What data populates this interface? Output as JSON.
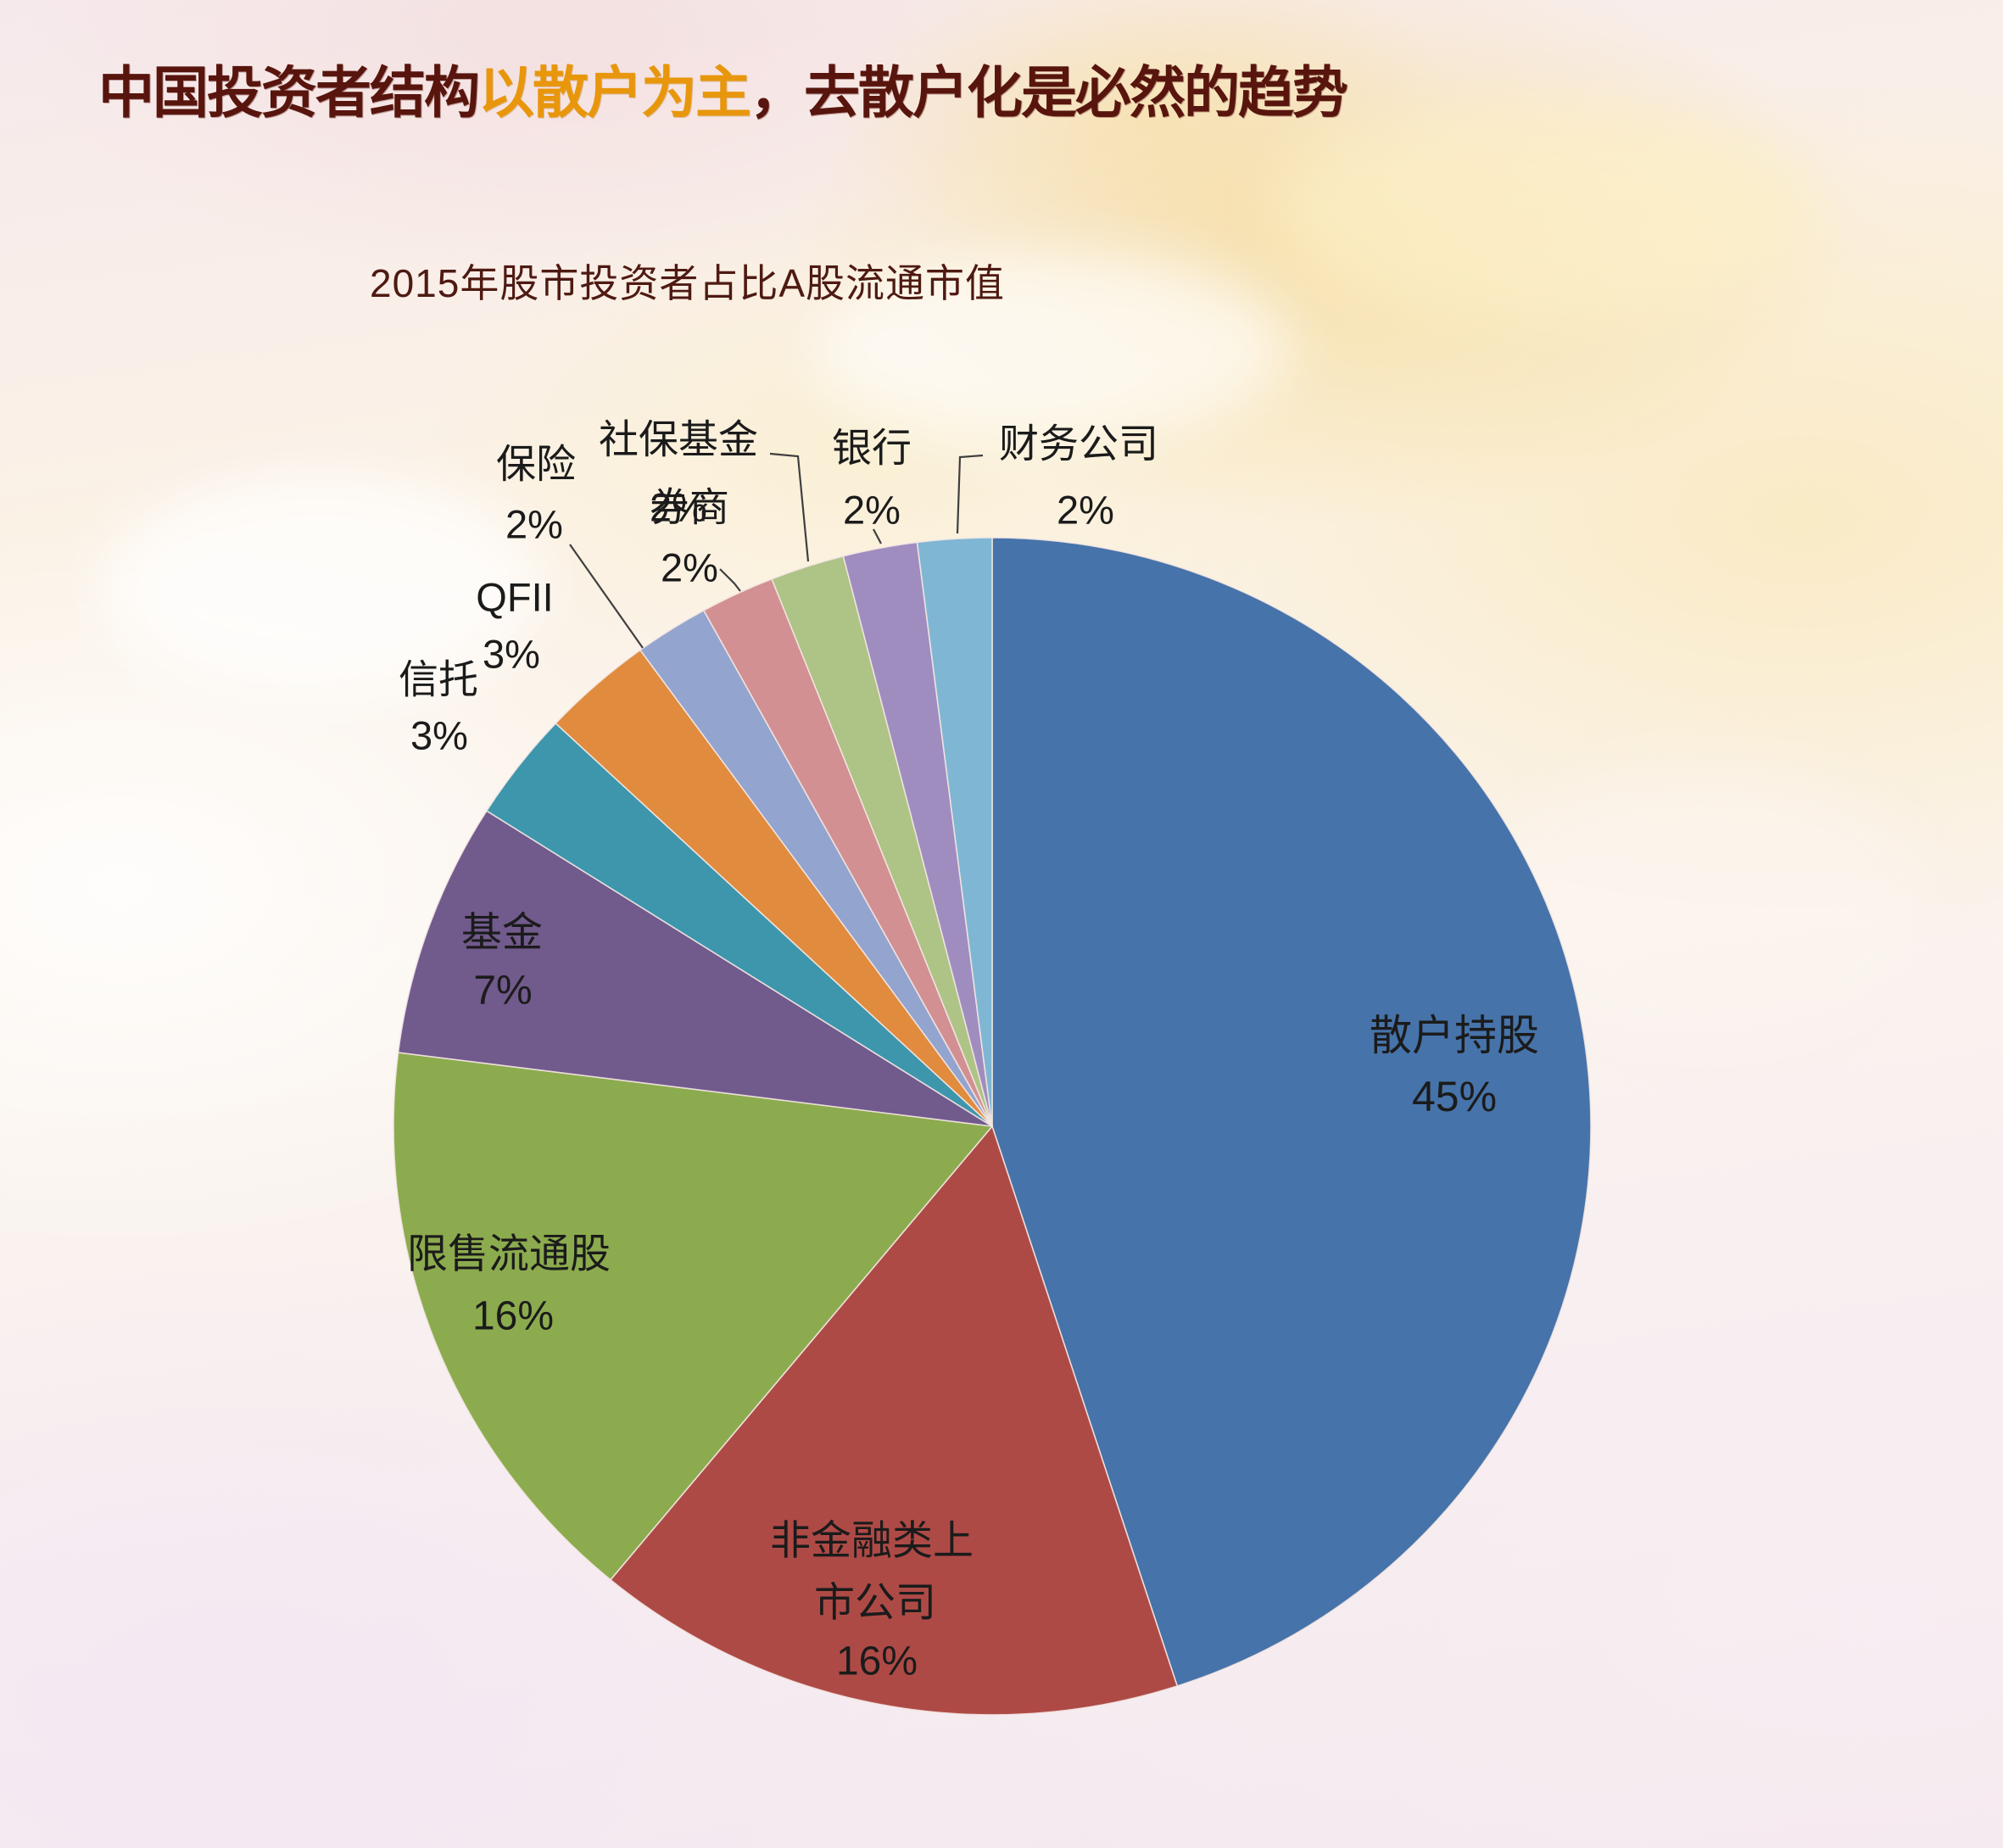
{
  "title": {
    "prefix": "中国投资者结构",
    "highlight": "以散户为主",
    "suffix": "，去散户化是必然的趋势"
  },
  "chart_data": {
    "type": "pie",
    "title": "2015年股市投资者占比A股流通市值",
    "start_angle_deg": 0,
    "direction": "clockwise",
    "legend_position": "none",
    "labels_on_slices": true,
    "slices": [
      {
        "label": "散户持股",
        "value": 45,
        "pct_label": "45%",
        "color": "#4673A9"
      },
      {
        "label": "非金融类上市公司",
        "value": 16,
        "pct_label": "16%",
        "color": "#AE4A46"
      },
      {
        "label": "限售流通股",
        "value": 16,
        "pct_label": "16%",
        "color": "#8CAB4E"
      },
      {
        "label": "基金",
        "value": 7,
        "pct_label": "7%",
        "color": "#715A8C"
      },
      {
        "label": "信托",
        "value": 3,
        "pct_label": "3%",
        "color": "#3D96AC"
      },
      {
        "label": "QFII",
        "value": 3,
        "pct_label": "3%",
        "color": "#E08B3E"
      },
      {
        "label": "保险",
        "value": 2,
        "pct_label": "2%",
        "color": "#93A4CE"
      },
      {
        "label": "券商",
        "value": 2,
        "pct_label": "2%",
        "color": "#D29092"
      },
      {
        "label": "社保基金",
        "value": 2,
        "pct_label": "2%",
        "color": "#AEC386"
      },
      {
        "label": "银行",
        "value": 2,
        "pct_label": "2%",
        "color": "#9F8DBF"
      },
      {
        "label": "财务公司",
        "value": 2,
        "pct_label": "2%",
        "color": "#7FB6D3"
      }
    ]
  },
  "colors": {
    "title_text": "#58150D",
    "title_highlight": "#E8960C",
    "subtitle_text": "#4E1A12",
    "label_text": "#1B1B1B",
    "leader_line": "#3F3F3F"
  }
}
